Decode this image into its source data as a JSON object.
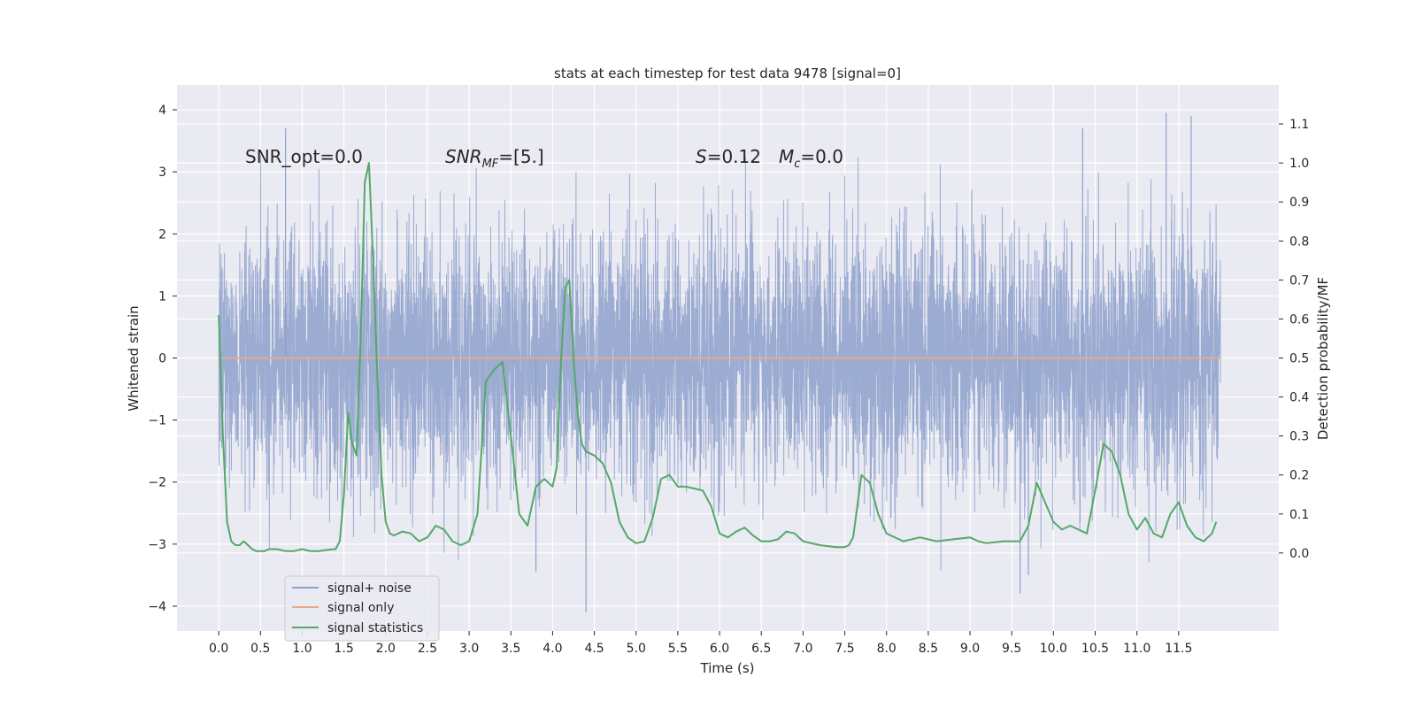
{
  "chart_data": {
    "type": "line",
    "title": "stats at each timestep for test data 9478 [signal=0]",
    "xlabel": "Time (s)",
    "ylabel": "Whitened strain",
    "ylabel_right": "Detection probability/MF",
    "xlim": [
      -0.5,
      12.7
    ],
    "ylim": [
      -4.4,
      4.4
    ],
    "ylim_right": [
      -0.2,
      1.2
    ],
    "x_ticks": [
      "0.0",
      "0.5",
      "1.0",
      "1.5",
      "2.0",
      "2.5",
      "3.0",
      "3.5",
      "4.0",
      "4.5",
      "5.0",
      "5.5",
      "6.0",
      "6.5",
      "7.0",
      "7.5",
      "8.0",
      "8.5",
      "9.0",
      "9.5",
      "10.0",
      "10.5",
      "11.0",
      "11.5"
    ],
    "y_ticks_left": [
      "4",
      "3",
      "2",
      "1",
      "0",
      "−1",
      "−2",
      "−3",
      "−4"
    ],
    "y_ticks_right": [
      "1.1",
      "1.0",
      "0.9",
      "0.8",
      "0.7",
      "0.6",
      "0.5",
      "0.4",
      "0.3",
      "0.2",
      "0.1",
      "0.0"
    ],
    "grid": true,
    "legend_position": "lower-left",
    "annotations": {
      "snr_opt": "SNR_opt=0.0",
      "snr_mf_main": "SNR",
      "snr_mf_sub": "MF",
      "snr_mf_rest": "=[5.]",
      "s_main": "S",
      "s_rest": "=0.12",
      "mc_main": "M",
      "mc_sub": "c",
      "mc_rest": "=0.0"
    },
    "series": [
      {
        "name": "signal+ noise",
        "axis": "left",
        "color": "#8da0cb",
        "x_range": [
          0.0,
          12.0
        ],
        "envelope_max_abs": 4.0,
        "peaks": [
          {
            "x": 0.8,
            "y": 3.7
          },
          {
            "x": 11.35,
            "y": 3.95
          },
          {
            "x": 11.65,
            "y": 3.9
          },
          {
            "x": 10.35,
            "y": 3.7
          },
          {
            "x": 4.4,
            "y": -4.1
          },
          {
            "x": 9.6,
            "y": -3.8
          },
          {
            "x": 3.8,
            "y": -3.45
          },
          {
            "x": 9.7,
            "y": -3.5
          }
        ]
      },
      {
        "name": "signal only",
        "axis": "left",
        "color": "#e8a98c",
        "x": [
          0.0,
          12.0
        ],
        "y": [
          0.0,
          0.0
        ]
      },
      {
        "name": "signal statistics",
        "axis": "right",
        "color": "#55a868",
        "x": [
          0.0,
          0.05,
          0.1,
          0.15,
          0.2,
          0.25,
          0.3,
          0.35,
          0.4,
          0.45,
          0.5,
          0.55,
          0.6,
          0.7,
          0.8,
          0.9,
          1.0,
          1.1,
          1.2,
          1.3,
          1.4,
          1.45,
          1.5,
          1.55,
          1.6,
          1.65,
          1.7,
          1.75,
          1.8,
          1.85,
          1.9,
          1.95,
          2.0,
          2.05,
          2.1,
          2.15,
          2.2,
          2.3,
          2.4,
          2.5,
          2.6,
          2.7,
          2.8,
          2.9,
          3.0,
          3.1,
          3.2,
          3.3,
          3.4,
          3.5,
          3.6,
          3.7,
          3.8,
          3.9,
          4.0,
          4.05,
          4.1,
          4.15,
          4.2,
          4.25,
          4.3,
          4.35,
          4.4,
          4.5,
          4.6,
          4.7,
          4.8,
          4.9,
          5.0,
          5.1,
          5.2,
          5.3,
          5.4,
          5.5,
          5.6,
          5.7,
          5.8,
          5.9,
          6.0,
          6.1,
          6.2,
          6.3,
          6.4,
          6.5,
          6.6,
          6.7,
          6.8,
          6.9,
          7.0,
          7.2,
          7.4,
          7.5,
          7.55,
          7.6,
          7.7,
          7.8,
          7.9,
          8.0,
          8.2,
          8.4,
          8.6,
          8.8,
          9.0,
          9.1,
          9.2,
          9.4,
          9.6,
          9.7,
          9.8,
          9.9,
          10.0,
          10.1,
          10.2,
          10.4,
          10.5,
          10.6,
          10.7,
          10.8,
          10.9,
          11.0,
          11.1,
          11.2,
          11.3,
          11.4,
          11.5,
          11.6,
          11.7,
          11.8,
          11.9,
          11.95
        ],
        "y": [
          0.61,
          0.3,
          0.08,
          0.03,
          0.02,
          0.02,
          0.03,
          0.02,
          0.01,
          0.005,
          0.005,
          0.005,
          0.01,
          0.01,
          0.005,
          0.005,
          0.01,
          0.005,
          0.005,
          0.008,
          0.01,
          0.03,
          0.15,
          0.36,
          0.28,
          0.25,
          0.55,
          0.95,
          1.0,
          0.75,
          0.45,
          0.2,
          0.08,
          0.05,
          0.045,
          0.05,
          0.055,
          0.05,
          0.03,
          0.04,
          0.07,
          0.06,
          0.03,
          0.02,
          0.03,
          0.1,
          0.44,
          0.47,
          0.49,
          0.3,
          0.1,
          0.07,
          0.17,
          0.19,
          0.17,
          0.22,
          0.49,
          0.68,
          0.7,
          0.5,
          0.36,
          0.28,
          0.26,
          0.25,
          0.23,
          0.18,
          0.08,
          0.04,
          0.025,
          0.03,
          0.09,
          0.19,
          0.2,
          0.17,
          0.17,
          0.165,
          0.16,
          0.12,
          0.05,
          0.04,
          0.055,
          0.065,
          0.045,
          0.03,
          0.03,
          0.035,
          0.055,
          0.05,
          0.03,
          0.02,
          0.015,
          0.015,
          0.02,
          0.04,
          0.2,
          0.18,
          0.1,
          0.05,
          0.03,
          0.04,
          0.03,
          0.035,
          0.04,
          0.03,
          0.025,
          0.03,
          0.03,
          0.07,
          0.18,
          0.13,
          0.08,
          0.06,
          0.07,
          0.05,
          0.16,
          0.28,
          0.26,
          0.2,
          0.1,
          0.06,
          0.09,
          0.05,
          0.04,
          0.1,
          0.13,
          0.07,
          0.04,
          0.03,
          0.05,
          0.08
        ]
      }
    ]
  }
}
